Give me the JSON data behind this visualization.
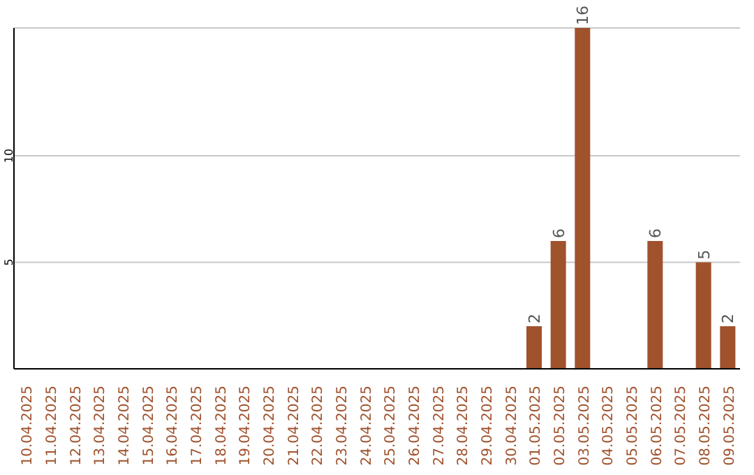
{
  "chart_data": {
    "type": "bar",
    "categories": [
      "10.04.2025",
      "11.04.2025",
      "12.04.2025",
      "13.04.2025",
      "14.04.2025",
      "15.04.2025",
      "16.04.2025",
      "17.04.2025",
      "18.04.2025",
      "19.04.2025",
      "20.04.2025",
      "21.04.2025",
      "22.04.2025",
      "23.04.2025",
      "24.04.2025",
      "25.04.2025",
      "26.04.2025",
      "27.04.2025",
      "28.04.2025",
      "29.04.2025",
      "30.04.2025",
      "01.05.2025",
      "02.05.2025",
      "03.05.2025",
      "04.05.2025",
      "05.05.2025",
      "06.05.2025",
      "07.05.2025",
      "08.05.2025",
      "09.05.2025"
    ],
    "values": [
      0,
      0,
      0,
      0,
      0,
      0,
      0,
      0,
      0,
      0,
      0,
      0,
      0,
      0,
      0,
      0,
      0,
      0,
      0,
      0,
      0,
      2,
      6,
      16,
      0,
      0,
      6,
      0,
      5,
      2
    ],
    "value_labels": [
      null,
      null,
      null,
      null,
      null,
      null,
      null,
      null,
      null,
      null,
      null,
      null,
      null,
      null,
      null,
      null,
      null,
      null,
      null,
      null,
      null,
      "2",
      "6",
      "16",
      null,
      null,
      "6",
      null,
      "5",
      "2"
    ],
    "color": "#a0522d",
    "ylim": [
      0,
      16
    ],
    "yticks": [
      5,
      10
    ],
    "grid": "y"
  }
}
